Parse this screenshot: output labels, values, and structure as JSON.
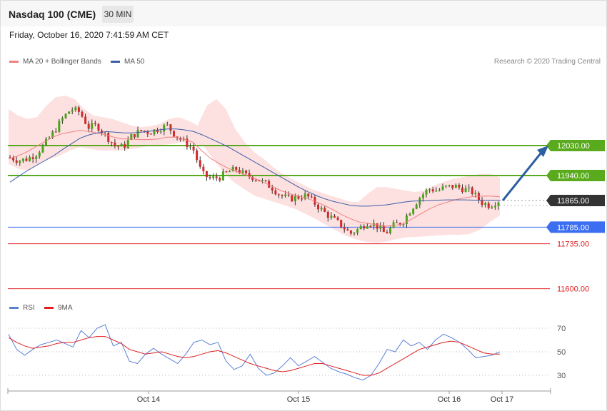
{
  "header": {
    "symbol": "Nasdaq 100 (CME)",
    "timeframe": "30 MIN"
  },
  "timestamp": "Friday, October 16, 2020 7:41:59 AM CET",
  "legend": {
    "ma20_label": "MA 20 + Bollinger Bands",
    "ma50_label": "MA 50",
    "rsi_label": "RSI",
    "ma9_label": "9MA",
    "ma20_color": "#f08080",
    "ma50_color": "#3a5fa8",
    "rsi_color": "#5b7fd6",
    "ma9_color": "#e02020"
  },
  "credit": "Research © 2020 Trading Central",
  "chart_data": {
    "type": "candlestick",
    "price_axis_range": [
      11550,
      12200
    ],
    "levels": [
      {
        "value": 12030,
        "label": "12030.00",
        "kind": "resistance",
        "color": "#5aaa1e"
      },
      {
        "value": 11940,
        "label": "11940.00",
        "kind": "resistance",
        "color": "#5aaa1e"
      },
      {
        "value": 11865,
        "label": "11865.00",
        "kind": "last_price",
        "color": "#333333"
      },
      {
        "value": 11785,
        "label": "11785.00",
        "kind": "pivot",
        "color": "#3b6ef0"
      },
      {
        "value": 11735,
        "label": "11735.00",
        "kind": "support",
        "color": "#e02020"
      },
      {
        "value": 11600,
        "label": "11600.00",
        "kind": "support",
        "color": "#e02020"
      }
    ],
    "x_ticks": [
      "Oct 14",
      "Oct 15",
      "Oct 16",
      "Oct 17"
    ],
    "projection": {
      "from": 11865,
      "to": 12030
    },
    "close_path": [
      11995,
      11985,
      11990,
      12005,
      12035,
      12070,
      12110,
      12140,
      12130,
      12085,
      12090,
      12060,
      12030,
      12025,
      12060,
      12075,
      12070,
      12080,
      12090,
      12060,
      12040,
      12020,
      11945,
      11930,
      11935,
      11950,
      11960,
      11940,
      11935,
      11920,
      11905,
      11880,
      11870,
      11875,
      11880,
      11855,
      11830,
      11810,
      11790,
      11765,
      11780,
      11800,
      11790,
      11765,
      11790,
      11800,
      11840,
      11875,
      11900,
      11895,
      11905,
      11908,
      11900,
      11890,
      11860,
      11850,
      11865
    ],
    "ma20_path": [
      11990,
      11998,
      12010,
      12025,
      12040,
      12055,
      12065,
      12070,
      12075,
      12073,
      12068,
      12063,
      12055,
      12050,
      12050,
      12048,
      12048,
      12050,
      12055,
      12055,
      12050,
      12040,
      12015,
      11992,
      11976,
      11962,
      11952,
      11942,
      11932,
      11920,
      11908,
      11895,
      11886,
      11878,
      11872,
      11862,
      11850,
      11837,
      11822,
      11810,
      11800,
      11796,
      11792,
      11788,
      11790,
      11795,
      11810,
      11825,
      11840,
      11852,
      11860,
      11868,
      11873,
      11877,
      11878,
      11878,
      11876
    ],
    "ma50_path": [
      11920,
      11938,
      11955,
      11970,
      11985,
      12000,
      12018,
      12035,
      12052,
      12062,
      12068,
      12072,
      12070,
      12068,
      12068,
      12070,
      12073,
      12077,
      12080,
      12080,
      12077,
      12072,
      12062,
      12050,
      12038,
      12025,
      12010,
      11995,
      11980,
      11965,
      11950,
      11935,
      11920,
      11905,
      11892,
      11880,
      11870,
      11862,
      11856,
      11850,
      11848,
      11848,
      11850,
      11852,
      11856,
      11860,
      11863,
      11864,
      11865,
      11866,
      11867,
      11867,
      11867,
      11866,
      11866,
      11866,
      11866
    ],
    "bb_upper_path": [
      12140,
      12120,
      12110,
      12115,
      12150,
      12175,
      12180,
      12170,
      12140,
      12120,
      12115,
      12110,
      12100,
      12090,
      12085,
      12088,
      12095,
      12110,
      12115,
      12105,
      12090,
      12150,
      12170,
      12140,
      12080,
      12040,
      12010,
      11990,
      11965,
      11945,
      11930,
      11915,
      11900,
      11890,
      11880,
      11872,
      11862,
      11860,
      11885,
      11905,
      11905,
      11900,
      11895,
      11890,
      11895,
      11910,
      11920,
      11930,
      11935,
      11940,
      11945,
      11945,
      11935
    ],
    "bb_lower_path": [
      11975,
      11960,
      11955,
      11975,
      11990,
      12000,
      12015,
      12025,
      12020,
      12015,
      12015,
      12015,
      12020,
      12025,
      12030,
      12032,
      12035,
      12040,
      12035,
      12030,
      11990,
      11950,
      11920,
      11900,
      11880,
      11870,
      11860,
      11850,
      11840,
      11825,
      11810,
      11792,
      11775,
      11758,
      11748,
      11740,
      11738,
      11742,
      11750,
      11755,
      11756,
      11758,
      11760,
      11762,
      11762,
      11764,
      11776,
      11800,
      11820
    ],
    "rsi": {
      "levels": [
        70,
        50,
        30
      ],
      "range": [
        20,
        80
      ],
      "rsi_path": [
        65,
        52,
        47,
        52,
        56,
        58,
        60,
        57,
        54,
        68,
        62,
        70,
        73,
        55,
        58,
        42,
        40,
        48,
        53,
        48,
        44,
        40,
        48,
        58,
        60,
        56,
        58,
        42,
        35,
        38,
        48,
        36,
        30,
        32,
        38,
        45,
        38,
        42,
        46,
        41,
        36,
        33,
        31,
        28,
        26,
        30,
        40,
        52,
        50,
        60,
        55,
        58,
        52,
        60,
        65,
        62,
        58,
        52,
        45,
        46,
        47,
        50
      ],
      "ma9_path": [
        62,
        58,
        55,
        53,
        54,
        55,
        57,
        58,
        58,
        60,
        62,
        63,
        63,
        60,
        57,
        52,
        50,
        48,
        49,
        50,
        48,
        46,
        45,
        46,
        48,
        50,
        51,
        49,
        46,
        43,
        40,
        38,
        36,
        34,
        33,
        34,
        36,
        38,
        40,
        40,
        38,
        36,
        34,
        32,
        30,
        30,
        32,
        36,
        40,
        44,
        48,
        52,
        54,
        56,
        58,
        59,
        58,
        55,
        52,
        49,
        48,
        48
      ]
    }
  }
}
